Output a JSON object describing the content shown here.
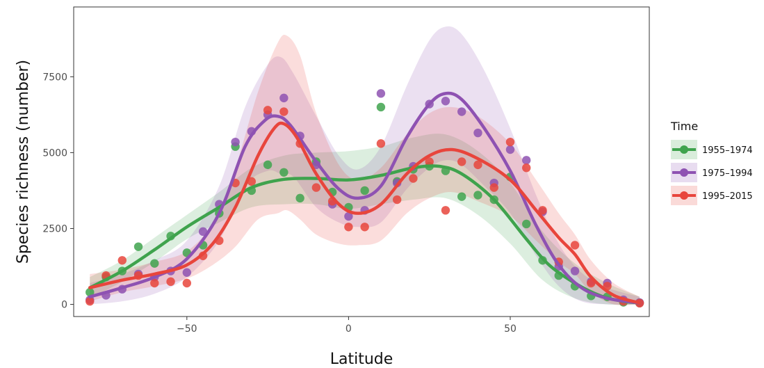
{
  "chart_data": {
    "type": "scatter",
    "xlabel": "Latitude",
    "ylabel": "Species richness (number)",
    "xlim": [
      -85,
      93
    ],
    "ylim": [
      -400,
      9800
    ],
    "x_ticks": [
      -50,
      0,
      50
    ],
    "y_ticks": [
      0,
      2500,
      5000,
      7500
    ],
    "grid": false,
    "legend": {
      "title": "Time",
      "placement": "right"
    },
    "series": [
      {
        "name": "1955–1974",
        "color": "#3fa34d",
        "points": [
          [
            -80,
            400
          ],
          [
            -75,
            900
          ],
          [
            -70,
            1100
          ],
          [
            -65,
            1900
          ],
          [
            -60,
            1350
          ],
          [
            -55,
            2250
          ],
          [
            -50,
            1700
          ],
          [
            -45,
            1950
          ],
          [
            -40,
            3000
          ],
          [
            -35,
            5200
          ],
          [
            -30,
            3750
          ],
          [
            -25,
            4600
          ],
          [
            -20,
            4350
          ],
          [
            -15,
            3500
          ],
          [
            -10,
            4700
          ],
          [
            -5,
            3700
          ],
          [
            0,
            3200
          ],
          [
            5,
            3750
          ],
          [
            10,
            6500
          ],
          [
            15,
            4050
          ],
          [
            20,
            4450
          ],
          [
            25,
            4550
          ],
          [
            30,
            4400
          ],
          [
            35,
            3550
          ],
          [
            40,
            3600
          ],
          [
            45,
            3450
          ],
          [
            50,
            4200
          ],
          [
            55,
            2650
          ],
          [
            60,
            1450
          ],
          [
            65,
            950
          ],
          [
            70,
            600
          ],
          [
            75,
            280
          ],
          [
            80,
            250
          ],
          [
            85,
            70
          ],
          [
            90,
            50
          ]
        ],
        "smooth": [
          [
            -80,
            550
          ],
          [
            -70,
            1100
          ],
          [
            -60,
            1800
          ],
          [
            -50,
            2550
          ],
          [
            -40,
            3200
          ],
          [
            -30,
            3850
          ],
          [
            -20,
            4120
          ],
          [
            -10,
            4150
          ],
          [
            0,
            4100
          ],
          [
            10,
            4250
          ],
          [
            20,
            4500
          ],
          [
            28,
            4550
          ],
          [
            35,
            4300
          ],
          [
            45,
            3450
          ],
          [
            55,
            2150
          ],
          [
            62,
            1300
          ],
          [
            70,
            700
          ],
          [
            78,
            280
          ],
          [
            85,
            100
          ],
          [
            90,
            50
          ]
        ],
        "band_upper": [
          [
            -80,
            900
          ],
          [
            -70,
            1450
          ],
          [
            -60,
            2200
          ],
          [
            -50,
            2950
          ],
          [
            -40,
            3700
          ],
          [
            -30,
            4500
          ],
          [
            -20,
            4900
          ],
          [
            -10,
            5000
          ],
          [
            0,
            5050
          ],
          [
            10,
            5200
          ],
          [
            20,
            5500
          ],
          [
            30,
            5600
          ],
          [
            40,
            5050
          ],
          [
            50,
            4000
          ],
          [
            60,
            2400
          ],
          [
            70,
            1350
          ],
          [
            80,
            700
          ],
          [
            90,
            250
          ]
        ],
        "band_lower": [
          [
            -80,
            200
          ],
          [
            -70,
            750
          ],
          [
            -60,
            1400
          ],
          [
            -50,
            2150
          ],
          [
            -40,
            2700
          ],
          [
            -30,
            3200
          ],
          [
            -20,
            3300
          ],
          [
            -10,
            3300
          ],
          [
            0,
            3150
          ],
          [
            10,
            3300
          ],
          [
            20,
            3450
          ],
          [
            30,
            3500
          ],
          [
            40,
            2950
          ],
          [
            50,
            2000
          ],
          [
            60,
            800
          ],
          [
            70,
            200
          ],
          [
            80,
            0
          ],
          [
            90,
            0
          ]
        ]
      },
      {
        "name": "1975–1994",
        "color": "#8e52b2",
        "points": [
          [
            -80,
            150
          ],
          [
            -75,
            300
          ],
          [
            -70,
            500
          ],
          [
            -65,
            1000
          ],
          [
            -60,
            900
          ],
          [
            -55,
            1100
          ],
          [
            -50,
            1050
          ],
          [
            -45,
            2400
          ],
          [
            -40,
            3300
          ],
          [
            -35,
            5350
          ],
          [
            -30,
            5700
          ],
          [
            -25,
            6250
          ],
          [
            -20,
            6800
          ],
          [
            -15,
            5550
          ],
          [
            -10,
            4600
          ],
          [
            -5,
            3300
          ],
          [
            0,
            2900
          ],
          [
            5,
            3100
          ],
          [
            10,
            6950
          ],
          [
            15,
            4000
          ],
          [
            20,
            4550
          ],
          [
            25,
            6600
          ],
          [
            30,
            6700
          ],
          [
            35,
            6350
          ],
          [
            40,
            5650
          ],
          [
            45,
            4000
          ],
          [
            50,
            5100
          ],
          [
            55,
            4750
          ],
          [
            60,
            3050
          ],
          [
            65,
            1250
          ],
          [
            70,
            1100
          ],
          [
            75,
            750
          ],
          [
            80,
            700
          ],
          [
            85,
            150
          ],
          [
            90,
            60
          ]
        ],
        "smooth": [
          [
            -80,
            250
          ],
          [
            -70,
            550
          ],
          [
            -60,
            900
          ],
          [
            -50,
            1500
          ],
          [
            -40,
            3000
          ],
          [
            -32,
            5200
          ],
          [
            -26,
            6050
          ],
          [
            -22,
            6200
          ],
          [
            -18,
            5900
          ],
          [
            -10,
            4700
          ],
          [
            -3,
            3800
          ],
          [
            3,
            3500
          ],
          [
            10,
            3900
          ],
          [
            18,
            5500
          ],
          [
            25,
            6600
          ],
          [
            30,
            6950
          ],
          [
            35,
            6750
          ],
          [
            42,
            5800
          ],
          [
            50,
            4400
          ],
          [
            58,
            2600
          ],
          [
            65,
            1300
          ],
          [
            72,
            550
          ],
          [
            80,
            200
          ],
          [
            90,
            50
          ]
        ],
        "band_upper": [
          [
            -80,
            700
          ],
          [
            -70,
            1000
          ],
          [
            -60,
            1450
          ],
          [
            -50,
            2100
          ],
          [
            -40,
            3900
          ],
          [
            -32,
            6500
          ],
          [
            -25,
            7900
          ],
          [
            -21,
            8150
          ],
          [
            -17,
            7600
          ],
          [
            -10,
            6200
          ],
          [
            -3,
            4900
          ],
          [
            3,
            4450
          ],
          [
            10,
            5200
          ],
          [
            18,
            7200
          ],
          [
            25,
            8700
          ],
          [
            30,
            9150
          ],
          [
            35,
            8900
          ],
          [
            42,
            7700
          ],
          [
            50,
            5800
          ],
          [
            58,
            3600
          ],
          [
            65,
            2000
          ],
          [
            72,
            1050
          ],
          [
            80,
            550
          ],
          [
            90,
            250
          ]
        ],
        "band_lower": [
          [
            -80,
            0
          ],
          [
            -70,
            100
          ],
          [
            -60,
            350
          ],
          [
            -50,
            900
          ],
          [
            -40,
            2100
          ],
          [
            -32,
            3900
          ],
          [
            -25,
            4400
          ],
          [
            -21,
            4300
          ],
          [
            -17,
            4200
          ],
          [
            -10,
            3200
          ],
          [
            -3,
            2700
          ],
          [
            3,
            2550
          ],
          [
            10,
            2700
          ],
          [
            18,
            3800
          ],
          [
            25,
            4500
          ],
          [
            30,
            4750
          ],
          [
            35,
            4600
          ],
          [
            42,
            3900
          ],
          [
            50,
            3000
          ],
          [
            58,
            1600
          ],
          [
            65,
            600
          ],
          [
            72,
            100
          ],
          [
            80,
            0
          ],
          [
            90,
            0
          ]
        ]
      },
      {
        "name": "1995–2015",
        "color": "#e8453c",
        "points": [
          [
            -80,
            100
          ],
          [
            -75,
            950
          ],
          [
            -70,
            1450
          ],
          [
            -65,
            950
          ],
          [
            -60,
            700
          ],
          [
            -55,
            750
          ],
          [
            -50,
            700
          ],
          [
            -45,
            1600
          ],
          [
            -40,
            2100
          ],
          [
            -35,
            4000
          ],
          [
            -30,
            4050
          ],
          [
            -25,
            6400
          ],
          [
            -20,
            6350
          ],
          [
            -15,
            5300
          ],
          [
            -10,
            3850
          ],
          [
            -5,
            3400
          ],
          [
            0,
            2550
          ],
          [
            5,
            2550
          ],
          [
            10,
            5300
          ],
          [
            15,
            3450
          ],
          [
            20,
            4150
          ],
          [
            25,
            4700
          ],
          [
            30,
            3100
          ],
          [
            35,
            4700
          ],
          [
            40,
            4600
          ],
          [
            45,
            3850
          ],
          [
            50,
            5350
          ],
          [
            55,
            4500
          ],
          [
            60,
            3100
          ],
          [
            65,
            1400
          ],
          [
            70,
            1950
          ],
          [
            75,
            700
          ],
          [
            80,
            600
          ],
          [
            85,
            100
          ],
          [
            90,
            40
          ]
        ],
        "smooth": [
          [
            -80,
            550
          ],
          [
            -70,
            800
          ],
          [
            -60,
            1000
          ],
          [
            -50,
            1300
          ],
          [
            -42,
            2000
          ],
          [
            -35,
            3200
          ],
          [
            -28,
            4900
          ],
          [
            -23,
            5800
          ],
          [
            -20,
            5950
          ],
          [
            -16,
            5500
          ],
          [
            -10,
            4300
          ],
          [
            -3,
            3300
          ],
          [
            3,
            3000
          ],
          [
            10,
            3300
          ],
          [
            18,
            4300
          ],
          [
            25,
            4900
          ],
          [
            32,
            5100
          ],
          [
            40,
            4800
          ],
          [
            50,
            4100
          ],
          [
            58,
            3100
          ],
          [
            65,
            2200
          ],
          [
            70,
            1650
          ],
          [
            75,
            900
          ],
          [
            82,
            300
          ],
          [
            90,
            50
          ]
        ],
        "band_upper": [
          [
            -80,
            1000
          ],
          [
            -70,
            1150
          ],
          [
            -60,
            1400
          ],
          [
            -50,
            1750
          ],
          [
            -42,
            2700
          ],
          [
            -35,
            4500
          ],
          [
            -28,
            7000
          ],
          [
            -22,
            8600
          ],
          [
            -19,
            8850
          ],
          [
            -15,
            8200
          ],
          [
            -10,
            6300
          ],
          [
            -3,
            4600
          ],
          [
            3,
            4100
          ],
          [
            10,
            4500
          ],
          [
            18,
            5600
          ],
          [
            25,
            6300
          ],
          [
            32,
            6500
          ],
          [
            40,
            6200
          ],
          [
            50,
            5300
          ],
          [
            58,
            4100
          ],
          [
            65,
            3000
          ],
          [
            70,
            2300
          ],
          [
            75,
            1450
          ],
          [
            82,
            700
          ],
          [
            90,
            250
          ]
        ],
        "band_lower": [
          [
            -80,
            100
          ],
          [
            -70,
            400
          ],
          [
            -60,
            600
          ],
          [
            -50,
            850
          ],
          [
            -42,
            1300
          ],
          [
            -35,
            1900
          ],
          [
            -28,
            2800
          ],
          [
            -22,
            3000
          ],
          [
            -19,
            3100
          ],
          [
            -15,
            2800
          ],
          [
            -10,
            2300
          ],
          [
            -3,
            2000
          ],
          [
            3,
            1950
          ],
          [
            10,
            2100
          ],
          [
            18,
            3000
          ],
          [
            25,
            3500
          ],
          [
            32,
            3700
          ],
          [
            40,
            3400
          ],
          [
            50,
            2900
          ],
          [
            58,
            2100
          ],
          [
            65,
            1400
          ],
          [
            70,
            1000
          ],
          [
            75,
            400
          ],
          [
            82,
            0
          ],
          [
            90,
            0
          ]
        ]
      }
    ]
  }
}
